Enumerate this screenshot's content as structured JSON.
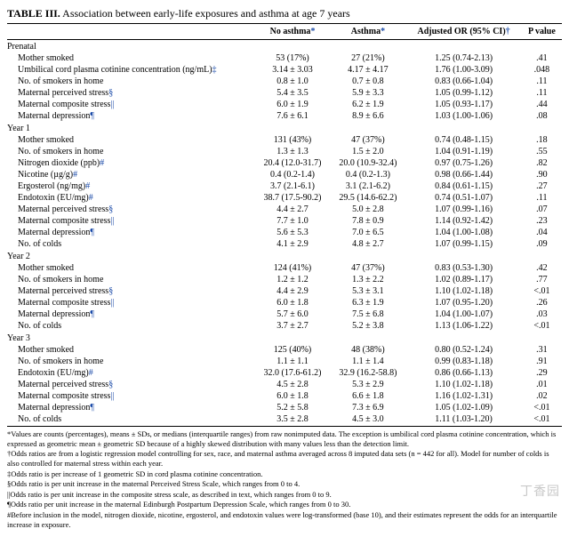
{
  "title_prefix": "TABLE III.",
  "title_text": " Association between early-life exposures and asthma at age 7 years",
  "columns": [
    "",
    "No asthma",
    "Asthma",
    "Adjusted OR (95% CI)",
    "P value"
  ],
  "col_syms": [
    "",
    "*",
    "*",
    "†",
    ""
  ],
  "sections": [
    {
      "name": "Prenatal",
      "rows": [
        {
          "label": "Mother smoked",
          "sym": "",
          "c2": "53 (17%)",
          "c3": "27 (21%)",
          "c4": "1.25 (0.74-2.13)",
          "c5": ".41"
        },
        {
          "label": "Umbilical cord plasma cotinine concentration (ng/mL)",
          "sym": "‡",
          "c2": "3.14 ± 3.03",
          "c3": "4.17 ± 4.17",
          "c4": "1.76 (1.00-3.09)",
          "c5": ".048"
        },
        {
          "label": "No. of smokers in home",
          "sym": "",
          "c2": "0.8 ± 1.0",
          "c3": "0.7 ± 0.8",
          "c4": "0.83 (0.66-1.04)",
          "c5": ".11"
        },
        {
          "label": "Maternal perceived stress",
          "sym": "§",
          "c2": "5.4 ± 3.5",
          "c3": "5.9 ± 3.3",
          "c4": "1.05 (0.99-1.12)",
          "c5": ".11"
        },
        {
          "label": "Maternal composite stress",
          "sym": "||",
          "c2": "6.0 ± 1.9",
          "c3": "6.2 ± 1.9",
          "c4": "1.05 (0.93-1.17)",
          "c5": ".44"
        },
        {
          "label": "Maternal depression",
          "sym": "¶",
          "c2": "7.6 ± 6.1",
          "c3": "8.9 ± 6.6",
          "c4": "1.03 (1.00-1.06)",
          "c5": ".08"
        }
      ]
    },
    {
      "name": "Year 1",
      "rows": [
        {
          "label": "Mother smoked",
          "sym": "",
          "c2": "131 (43%)",
          "c3": "47 (37%)",
          "c4": "0.74 (0.48-1.15)",
          "c5": ".18"
        },
        {
          "label": "No. of smokers in home",
          "sym": "",
          "c2": "1.3 ± 1.3",
          "c3": "1.5 ± 2.0",
          "c4": "1.04 (0.91-1.19)",
          "c5": ".55"
        },
        {
          "label": "Nitrogen dioxide (ppb)",
          "sym": "#",
          "c2": "20.4 (12.0-31.7)",
          "c3": "20.0 (10.9-32.4)",
          "c4": "0.97 (0.75-1.26)",
          "c5": ".82"
        },
        {
          "label": "Nicotine (µg/g)",
          "sym": "#",
          "c2": "0.4 (0.2-1.4)",
          "c3": "0.4 (0.2-1.3)",
          "c4": "0.98 (0.66-1.44)",
          "c5": ".90"
        },
        {
          "label": "Ergosterol (ng/mg)",
          "sym": "#",
          "c2": "3.7 (2.1-6.1)",
          "c3": "3.1 (2.1-6.2)",
          "c4": "0.84 (0.61-1.15)",
          "c5": ".27"
        },
        {
          "label": "Endotoxin (EU/mg)",
          "sym": "#",
          "c2": "38.7 (17.5-90.2)",
          "c3": "29.5 (14.6-62.2)",
          "c4": "0.74 (0.51-1.07)",
          "c5": ".11"
        },
        {
          "label": "Maternal perceived stress",
          "sym": "§",
          "c2": "4.4 ± 2.7",
          "c3": "5.0 ± 2.8",
          "c4": "1.07 (0.99-1.16)",
          "c5": ".07"
        },
        {
          "label": "Maternal composite stress",
          "sym": "||",
          "c2": "7.7 ± 1.0",
          "c3": "7.8 ± 0.9",
          "c4": "1.14 (0.92-1.42)",
          "c5": ".23"
        },
        {
          "label": "Maternal depression",
          "sym": "¶",
          "c2": "5.6 ± 5.3",
          "c3": "7.0 ± 6.5",
          "c4": "1.04 (1.00-1.08)",
          "c5": ".04"
        },
        {
          "label": "No. of colds",
          "sym": "",
          "c2": "4.1 ± 2.9",
          "c3": "4.8 ± 2.7",
          "c4": "1.07 (0.99-1.15)",
          "c5": ".09"
        }
      ]
    },
    {
      "name": "Year 2",
      "rows": [
        {
          "label": "Mother smoked",
          "sym": "",
          "c2": "124 (41%)",
          "c3": "47 (37%)",
          "c4": "0.83 (0.53-1.30)",
          "c5": ".42"
        },
        {
          "label": "No. of smokers in home",
          "sym": "",
          "c2": "1.2 ± 1.2",
          "c3": "1.3 ± 2.2",
          "c4": "1.02 (0.89-1.17)",
          "c5": ".77"
        },
        {
          "label": "Maternal perceived stress",
          "sym": "§",
          "c2": "4.4 ± 2.9",
          "c3": "5.3 ± 3.1",
          "c4": "1.10 (1.02-1.18)",
          "c5": "<.01"
        },
        {
          "label": "Maternal composite stress",
          "sym": "||",
          "c2": "6.0 ± 1.8",
          "c3": "6.3 ± 1.9",
          "c4": "1.07 (0.95-1.20)",
          "c5": ".26"
        },
        {
          "label": "Maternal depression",
          "sym": "¶",
          "c2": "5.7 ± 6.0",
          "c3": "7.5 ± 6.8",
          "c4": "1.04 (1.00-1.07)",
          "c5": ".03"
        },
        {
          "label": "No. of colds",
          "sym": "",
          "c2": "3.7 ± 2.7",
          "c3": "5.2 ± 3.8",
          "c4": "1.13 (1.06-1.22)",
          "c5": "<.01"
        }
      ]
    },
    {
      "name": "Year 3",
      "rows": [
        {
          "label": "Mother smoked",
          "sym": "",
          "c2": "125 (40%)",
          "c3": "48 (38%)",
          "c4": "0.80 (0.52-1.24)",
          "c5": ".31"
        },
        {
          "label": "No. of smokers in home",
          "sym": "",
          "c2": "1.1 ± 1.1",
          "c3": "1.1 ± 1.4",
          "c4": "0.99 (0.83-1.18)",
          "c5": ".91"
        },
        {
          "label": "Endotoxin (EU/mg)",
          "sym": "#",
          "c2": "32.0 (17.6-61.2)",
          "c3": "32.9 (16.2-58.8)",
          "c4": "0.86 (0.66-1.13)",
          "c5": ".29"
        },
        {
          "label": "Maternal perceived stress",
          "sym": "§",
          "c2": "4.5 ± 2.8",
          "c3": "5.3 ± 2.9",
          "c4": "1.10 (1.02-1.18)",
          "c5": ".01"
        },
        {
          "label": "Maternal composite stress",
          "sym": "||",
          "c2": "6.0 ± 1.8",
          "c3": "6.6 ± 1.8",
          "c4": "1.16 (1.02-1.31)",
          "c5": ".02"
        },
        {
          "label": "Maternal depression",
          "sym": "¶",
          "c2": "5.2 ± 5.8",
          "c3": "7.3 ± 6.9",
          "c4": "1.05 (1.02-1.09)",
          "c5": "<.01"
        },
        {
          "label": "No. of colds",
          "sym": "",
          "c2": "3.5 ± 2.8",
          "c3": "4.5 ± 3.0",
          "c4": "1.11 (1.03-1.20)",
          "c5": "<.01"
        }
      ]
    }
  ],
  "footnotes": [
    "*Values are counts (percentages), means ± SDs, or medians (interquartile ranges) from raw nonimputed data. The exception is umbilical cord plasma cotinine concentration, which is expressed as geometric mean ± geometric SD because of a highly skewed distribution with many values less than the detection limit.",
    "†Odds ratios are from a logistic regression model controlling for sex, race, and maternal asthma averaged across 8 imputed data sets (n = 442 for all). Model for number of colds is also controlled for maternal stress within each year.",
    "‡Odds ratio is per increase of 1 geometric SD in cord plasma cotinine concentration.",
    "§Odds ratio is per unit increase in the maternal Perceived Stress Scale, which ranges from 0 to 4.",
    "||Odds ratio is per unit increase in the composite stress scale, as described in text, which ranges from 0 to 9.",
    "¶Odds ratio per unit increase in the maternal Edinburgh Postpartum Depression Scale, which ranges from 0 to 30.",
    "#Before inclusion in the model, nitrogen dioxide, nicotine, ergosterol, and endotoxin values were log-transformed (base 10), and their estimates represent the odds for an interquartile increase in exposure."
  ],
  "watermark": "丁香园"
}
